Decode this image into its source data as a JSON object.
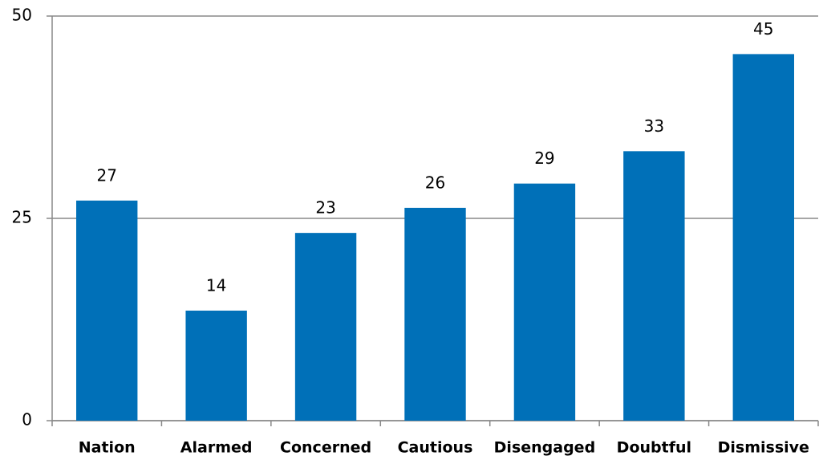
{
  "chart_data": {
    "type": "bar",
    "categories": [
      "Nation",
      "Alarmed",
      "Concerned",
      "Cautious",
      "Disengaged",
      "Doubtful",
      "Dismissive"
    ],
    "values": [
      27.2,
      13.6,
      23.2,
      26.3,
      29.3,
      33.3,
      45.3
    ],
    "value_labels": [
      "27",
      "14",
      "23",
      "26",
      "29",
      "33",
      "45"
    ],
    "color": "#0070b8",
    "ylim": [
      0,
      50
    ],
    "yticks": [
      0,
      25,
      50
    ],
    "grid": true
  }
}
